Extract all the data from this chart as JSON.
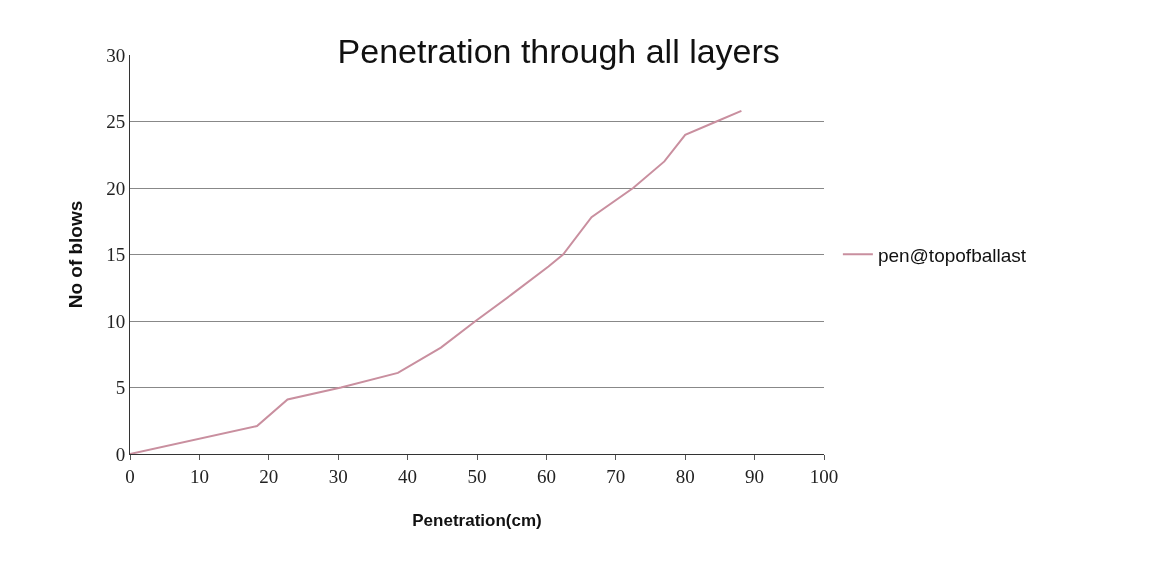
{
  "chart_data": {
    "type": "line",
    "title": "Penetration through all layers",
    "xlabel": "Penetration(cm)",
    "ylabel": "No of blows",
    "xlim": [
      0,
      100
    ],
    "xticks": [
      0,
      10,
      20,
      30,
      40,
      50,
      60,
      70,
      80,
      90,
      100
    ],
    "ylim": [
      0,
      30
    ],
    "yticks": [
      0,
      5,
      10,
      15,
      20,
      25,
      30
    ],
    "grid": "y",
    "legend": "right",
    "marker": "none",
    "line_style": "solid",
    "series": [
      {
        "name": "pen@topofballast",
        "color": "#c98f9f",
        "x": [
          0,
          18.3,
          22.7,
          30.4,
          38.6,
          44.8,
          49.8,
          55,
          60.3,
          62.4,
          66.5,
          72.5,
          77,
          80,
          84.5,
          88.1
        ],
        "values": [
          0,
          2.1,
          4.1,
          5,
          6.1,
          8,
          10,
          12,
          14.1,
          15,
          17.8,
          20,
          22,
          24,
          25,
          25.8
        ]
      }
    ]
  }
}
